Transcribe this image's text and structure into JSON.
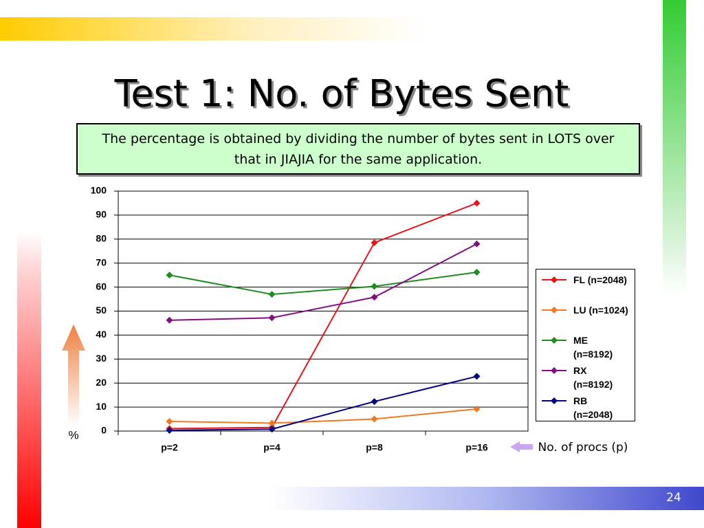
{
  "slide_number": "24",
  "chart_data": {
    "type": "line",
    "title": "Test 1: No. of Bytes Sent",
    "subtitle": "The percentage is obtained by dividing the number of bytes sent in LOTS over that in JIAJIA for the same application.",
    "y_label": "%",
    "x_label": "No. of procs (p)",
    "categories": [
      "p=2",
      "p=4",
      "p=8",
      "p=16"
    ],
    "series": [
      {
        "name": "FL (n=2048)",
        "color": "#e8141a",
        "values": [
          1,
          1.5,
          78.5,
          95
        ]
      },
      {
        "name": "LU (n=1024)",
        "color": "#f07820",
        "values": [
          4,
          3.3,
          5,
          9.2
        ]
      },
      {
        "name": "ME (n=8192)",
        "color": "#1e8c1e",
        "values": [
          65,
          57,
          60.3,
          66.2
        ]
      },
      {
        "name": "RX (n=8192)",
        "color": "#800f80",
        "values": [
          46.2,
          47.2,
          55.8,
          78
        ]
      },
      {
        "name": "RB (n=2048)",
        "color": "#000080",
        "values": [
          0.3,
          0.8,
          12.3,
          22.8
        ]
      }
    ],
    "ylim": [
      0,
      100
    ],
    "yticks": [
      0,
      10,
      20,
      30,
      40,
      50,
      60,
      70,
      80,
      90,
      100
    ],
    "grid": true,
    "legend": "right"
  }
}
